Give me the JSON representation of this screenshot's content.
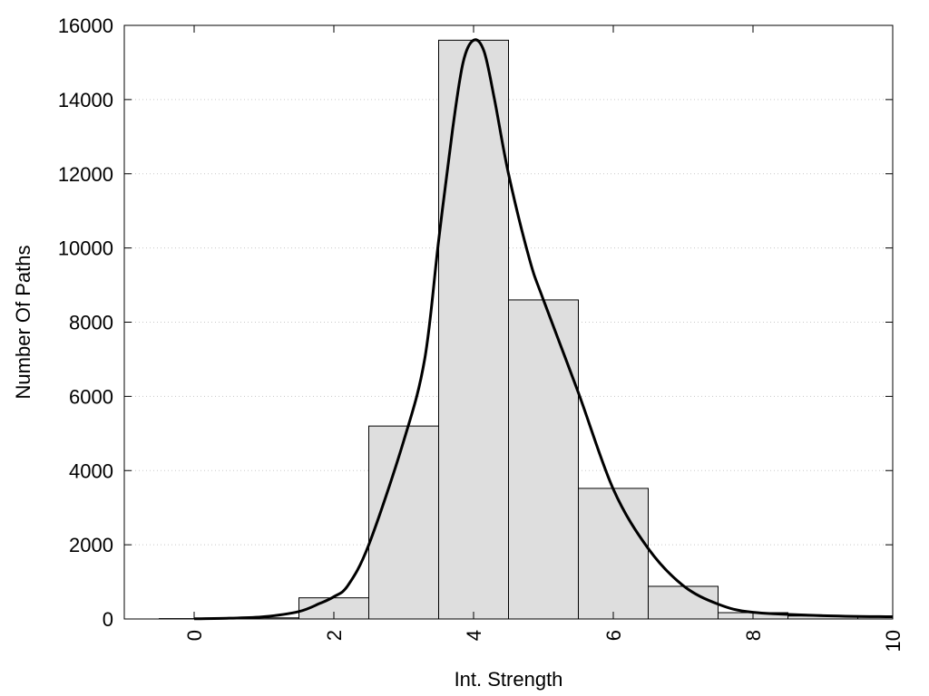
{
  "chart_data": {
    "type": "bar",
    "title": "",
    "xlabel": "Int. Strength",
    "ylabel": "Number Of Paths",
    "xlim": [
      -1,
      10
    ],
    "ylim": [
      0,
      16000
    ],
    "x_ticks": [
      "0",
      "2",
      "4",
      "6",
      "8",
      "10"
    ],
    "y_ticks": [
      "0",
      "2000",
      "4000",
      "6000",
      "8000",
      "10000",
      "12000",
      "14000",
      "16000"
    ],
    "grid": "horizontal dotted",
    "bar_width": 1,
    "bar_color": "#dedede",
    "line_color": "#000000",
    "series": [
      {
        "type": "bar",
        "x": [
          0,
          1,
          2,
          3,
          4,
          5,
          6,
          7,
          8,
          9,
          10
        ],
        "values": [
          10,
          30,
          570,
          5200,
          15600,
          8600,
          3520,
          880,
          170,
          80,
          60
        ]
      },
      {
        "type": "line",
        "x": [
          0,
          0.5,
          1,
          1.5,
          1.8,
          2,
          2.2,
          2.5,
          3,
          3.3,
          3.5,
          3.7,
          3.85,
          4,
          4.15,
          4.3,
          4.5,
          4.8,
          5,
          5.5,
          6,
          6.5,
          7,
          7.5,
          8,
          9,
          10
        ],
        "values": [
          5,
          20,
          60,
          200,
          420,
          600,
          900,
          2000,
          4800,
          7000,
          10200,
          13200,
          15000,
          15600,
          15300,
          14000,
          12000,
          9700,
          8600,
          6100,
          3500,
          1900,
          900,
          400,
          180,
          90,
          60
        ]
      }
    ]
  }
}
